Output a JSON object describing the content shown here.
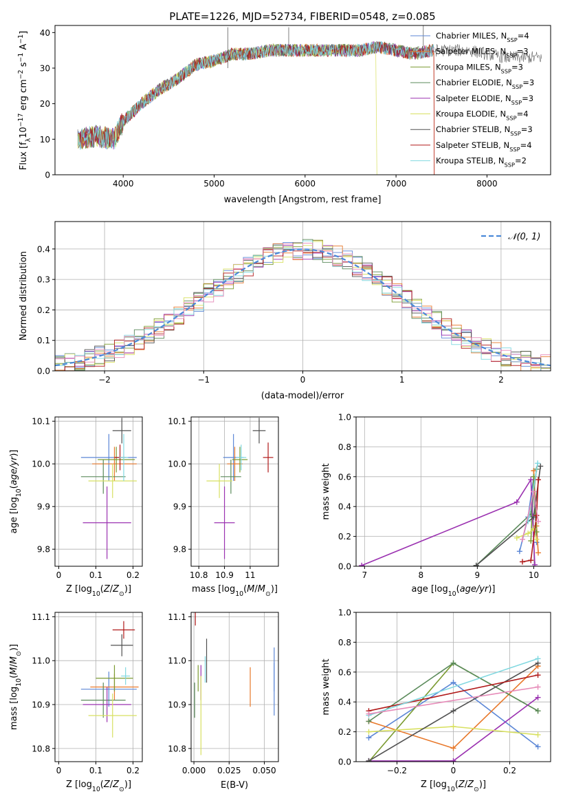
{
  "figure_title": "PLATE=1226, MJD=52734, FIBERID=0548, z=0.085",
  "model_colors": [
    "#5b86d6",
    "#e8782a",
    "#7a9a30",
    "#5a8a5a",
    "#9a30b0",
    "#d8e060",
    "#505050",
    "#b01818",
    "#80d8e0"
  ],
  "chart_data": [
    {
      "type": "line",
      "title": "PLATE=1226, MJD=52734, FIBERID=0548, z=0.085",
      "xlabel": "wavelength [Angstrom, rest frame]",
      "ylabel": "Flux [f_λ 10^-17 erg cm^-2 s^-1 A^-1]",
      "xlim": [
        3250,
        8700
      ],
      "ylim": [
        0,
        42
      ],
      "xticks": [
        4000,
        5000,
        6000,
        7000,
        8000
      ],
      "yticks": [
        0,
        10,
        20,
        30,
        40
      ],
      "legend_position": "top-right",
      "series": [
        {
          "name": "Chabrier MILES, N_SSP=4",
          "label_main": "Chabrier MILES, N",
          "label_sub": "SSP",
          "label_end": "=4",
          "color": "#5b86d6"
        },
        {
          "name": "Salpeter MILES, N_SSP=3",
          "label_main": "Salpeter MILES, N",
          "label_sub": "SSP",
          "label_end": "=3",
          "color": "#e8782a"
        },
        {
          "name": "Kroupa MILES, N_SSP=3",
          "label_main": "Kroupa MILES, N",
          "label_sub": "SSP",
          "label_end": "=3",
          "color": "#7a9a30"
        },
        {
          "name": "Chabrier ELODIE, N_SSP=3",
          "label_main": "Chabrier ELODIE, N",
          "label_sub": "SSP",
          "label_end": "=3",
          "color": "#5a8a5a"
        },
        {
          "name": "Salpeter ELODIE, N_SSP=3",
          "label_main": "Salpeter ELODIE, N",
          "label_sub": "SSP",
          "label_end": "=3",
          "color": "#9a30b0"
        },
        {
          "name": "Kroupa ELODIE, N_SSP=4",
          "label_main": "Kroupa ELODIE, N",
          "label_sub": "SSP",
          "label_end": "=4",
          "color": "#d8e060"
        },
        {
          "name": "Chabrier STELIB, N_SSP=3",
          "label_main": "Chabrier STELIB, N",
          "label_sub": "SSP",
          "label_end": "=3",
          "color": "#505050"
        },
        {
          "name": "Salpeter STELIB, N_SSP=4",
          "label_main": "Salpeter STELIB, N",
          "label_sub": "SSP",
          "label_end": "=4",
          "color": "#b01818"
        },
        {
          "name": "Kroupa STELIB, N_SSP=2",
          "label_main": "Kroupa STELIB, N",
          "label_sub": "SSP",
          "label_end": "=2",
          "color": "#80d8e0"
        }
      ],
      "spectrum_anchors": {
        "x": [
          3500,
          3700,
          3900,
          4000,
          4200,
          4400,
          4600,
          4800,
          5000,
          5200,
          5400,
          5600,
          5800,
          6000,
          6200,
          6400,
          6600,
          6800,
          7000,
          7200,
          7400,
          7600,
          7800,
          8000,
          8200
        ],
        "y": [
          10,
          11,
          10,
          15,
          20,
          24,
          27,
          31,
          32,
          34,
          34,
          35,
          35,
          35,
          35,
          35,
          35,
          36,
          35,
          34,
          35,
          35,
          35,
          34,
          33
        ]
      }
    },
    {
      "type": "bar",
      "subtype": "step-histogram",
      "xlabel": "(data-model)/error",
      "ylabel": "Normed distribution",
      "xlim": [
        -2.5,
        2.5
      ],
      "ylim": [
        0,
        0.49
      ],
      "xticks": [
        -2,
        -1,
        0,
        1,
        2
      ],
      "yticks": [
        0.0,
        0.1,
        0.2,
        0.3,
        0.4
      ],
      "reference_curve": {
        "name": "N(0,1)",
        "label": "𝒩(0, 1)",
        "color": "#4a88d8",
        "style": "dashed",
        "mu": 0,
        "sigma": 1
      },
      "legend_position": "top-right",
      "bin_width": 0.1,
      "bin_start": -2.5
    },
    {
      "type": "scatter",
      "subtype": "errorbar",
      "xlabel": "Z [log10(Z/Z⊙)]",
      "ylabel": "age  [log10(age/yr)]",
      "xlim": [
        -0.01,
        0.225
      ],
      "ylim": [
        9.76,
        10.11
      ],
      "xticks": [
        0.0,
        0.1,
        0.2
      ],
      "yticks": [
        9.8,
        9.9,
        10.0,
        10.1
      ],
      "points": [
        {
          "x": 0.135,
          "y": 10.015,
          "xerr": 0.075,
          "yerr": 0.055
        },
        {
          "x": 0.15,
          "y": 10.0,
          "xerr": 0.06,
          "yerr": 0.04
        },
        {
          "x": 0.155,
          "y": 10.01,
          "xerr": 0.05,
          "yerr": 0.03
        },
        {
          "x": 0.12,
          "y": 9.97,
          "xerr": 0.06,
          "yerr": 0.04
        },
        {
          "x": 0.13,
          "y": 9.862,
          "xerr": 0.065,
          "yerr": 0.085
        },
        {
          "x": 0.145,
          "y": 9.96,
          "xerr": 0.065,
          "yerr": 0.04
        },
        {
          "x": 0.17,
          "y": 10.078,
          "xerr": 0.025,
          "yerr": 0.03
        },
        {
          "x": 0.165,
          "y": 10.015,
          "xerr": 0.015,
          "yerr": 0.03
        },
        {
          "x": 0.175,
          "y": 10.015,
          "xerr": 0.012,
          "yerr": 0.055
        }
      ]
    },
    {
      "type": "scatter",
      "subtype": "errorbar",
      "xlabel": "mass [log10(M/M⊙)]",
      "ylabel": "",
      "xlim": [
        10.77,
        11.11
      ],
      "ylim": [
        9.76,
        10.11
      ],
      "xticks": [
        10.8,
        10.9,
        11.0
      ],
      "yticks": [
        9.8,
        9.9,
        10.0,
        10.1
      ],
      "points": [
        {
          "x": 10.935,
          "y": 10.015,
          "xerr": 0.04,
          "yerr": 0.055
        },
        {
          "x": 10.94,
          "y": 10.0,
          "xerr": 0.03,
          "yerr": 0.04
        },
        {
          "x": 10.96,
          "y": 10.01,
          "xerr": 0.03,
          "yerr": 0.03
        },
        {
          "x": 10.925,
          "y": 9.97,
          "xerr": 0.04,
          "yerr": 0.04
        },
        {
          "x": 10.9,
          "y": 9.862,
          "xerr": 0.04,
          "yerr": 0.085
        },
        {
          "x": 10.88,
          "y": 9.96,
          "xerr": 0.05,
          "yerr": 0.04
        },
        {
          "x": 11.035,
          "y": 10.078,
          "xerr": 0.025,
          "yerr": 0.03
        },
        {
          "x": 11.07,
          "y": 10.015,
          "xerr": 0.02,
          "yerr": 0.035
        },
        {
          "x": 10.965,
          "y": 10.015,
          "xerr": 0.02,
          "yerr": 0.03
        }
      ]
    },
    {
      "type": "line",
      "xlabel": "age  [log10(age/yr)]",
      "ylabel": "mass weight",
      "xlim": [
        6.85,
        10.3
      ],
      "ylim": [
        0,
        1.0
      ],
      "xticks": [
        7,
        8,
        9,
        10
      ],
      "yticks": [
        0.0,
        0.2,
        0.4,
        0.6,
        0.8,
        1.0
      ],
      "series": [
        {
          "x": [
            9.75,
            9.9,
            10.0,
            10.05
          ],
          "y": [
            0.1,
            0.33,
            0.6,
            0.16
          ]
        },
        {
          "x": [
            10.0,
            10.05,
            10.08
          ],
          "y": [
            0.64,
            0.27,
            0.09
          ]
        },
        {
          "x": [
            9.95,
            10.0,
            10.05
          ],
          "y": [
            0.17,
            0.6,
            0.23
          ]
        },
        {
          "x": [
            8.98,
            9.95,
            10.05
          ],
          "y": [
            0.005,
            0.35,
            0.65
          ]
        },
        {
          "x": [
            6.95,
            9.7,
            9.95,
            10.02
          ],
          "y": [
            0.005,
            0.43,
            0.58,
            0.01
          ]
        },
        {
          "x": [
            9.7,
            9.9,
            10.0,
            10.05
          ],
          "y": [
            0.19,
            0.22,
            0.25,
            0.18
          ]
        },
        {
          "x": [
            8.98,
            10.0,
            10.12
          ],
          "y": [
            0.005,
            0.33,
            0.67
          ]
        },
        {
          "x": [
            9.8,
            9.95,
            10.05,
            10.08
          ],
          "y": [
            0.03,
            0.04,
            0.34,
            0.58
          ]
        },
        {
          "x": [
            9.9,
            10.07
          ],
          "y": [
            0.3,
            0.69
          ]
        },
        {
          "x": [
            9.8,
            10.0,
            10.08
          ],
          "y": [
            0.18,
            0.5,
            0.3
          ]
        }
      ]
    },
    {
      "type": "scatter",
      "subtype": "errorbar",
      "xlabel": "Z [log10(Z/Z⊙)]",
      "ylabel": "mass [log10(M/M⊙)]",
      "xlim": [
        -0.01,
        0.225
      ],
      "ylim": [
        10.77,
        11.11
      ],
      "xticks": [
        0.0,
        0.1,
        0.2
      ],
      "yticks": [
        10.8,
        10.9,
        11.0,
        11.1
      ],
      "points": [
        {
          "x": 0.135,
          "y": 10.935,
          "xerr": 0.075,
          "yerr": 0.04
        },
        {
          "x": 0.15,
          "y": 10.94,
          "xerr": 0.065,
          "yerr": 0.03
        },
        {
          "x": 0.15,
          "y": 10.96,
          "xerr": 0.05,
          "yerr": 0.03
        },
        {
          "x": 0.12,
          "y": 10.91,
          "xerr": 0.06,
          "yerr": 0.04
        },
        {
          "x": 0.13,
          "y": 10.9,
          "xerr": 0.065,
          "yerr": 0.04
        },
        {
          "x": 0.145,
          "y": 10.875,
          "xerr": 0.065,
          "yerr": 0.05
        },
        {
          "x": 0.17,
          "y": 11.035,
          "xerr": 0.03,
          "yerr": 0.025
        },
        {
          "x": 0.175,
          "y": 11.07,
          "xerr": 0.03,
          "yerr": 0.02
        },
        {
          "x": 0.18,
          "y": 10.965,
          "xerr": 0.012,
          "yerr": 0.02
        }
      ]
    },
    {
      "type": "scatter",
      "subtype": "errorbar",
      "xlabel": "E(B-V)",
      "ylabel": "",
      "xlim": [
        -0.002,
        0.06
      ],
      "ylim": [
        10.77,
        11.11
      ],
      "xticks": [
        0.0,
        0.025,
        0.05
      ],
      "xticklabels": [
        "0.000",
        "0.025",
        "0.050"
      ],
      "yticks": [
        10.8,
        10.9,
        11.0,
        11.1
      ],
      "points": [
        {
          "x": 0.057,
          "y": 10.935,
          "xerr": 0,
          "yerr": 0.06
        },
        {
          "x": 0.04,
          "y": 10.94,
          "xerr": 0,
          "yerr": 0.045
        },
        {
          "x": 0.003,
          "y": 10.96,
          "xerr": 0,
          "yerr": 0.03
        },
        {
          "x": 0.0005,
          "y": 10.91,
          "xerr": 0,
          "yerr": 0.04
        },
        {
          "x": 0.005,
          "y": 10.95,
          "xerr": 0,
          "yerr": 0.04
        },
        {
          "x": 0.005,
          "y": 10.875,
          "xerr": 0,
          "yerr": 0.09
        },
        {
          "x": 0.009,
          "y": 11.0,
          "xerr": 0,
          "yerr": 0.05
        },
        {
          "x": 0.001,
          "y": 11.1,
          "xerr": 0,
          "yerr": 0.02
        },
        {
          "x": 0.008,
          "y": 10.98,
          "xerr": 0,
          "yerr": 0.03
        },
        {
          "x": 0.057,
          "y": 10.98,
          "xerr": 0,
          "yerr": 0.05
        }
      ]
    },
    {
      "type": "line",
      "xlabel": "Z [log10(Z/Z⊙)]",
      "ylabel": "mass weight",
      "xlim": [
        -0.345,
        0.345
      ],
      "ylim": [
        0,
        1.0
      ],
      "xticks": [
        -0.2,
        0.0,
        0.2
      ],
      "yticks": [
        0.0,
        0.2,
        0.4,
        0.6,
        0.8,
        1.0
      ],
      "series": [
        {
          "x": [
            -0.3,
            0.0,
            0.3
          ],
          "y": [
            0.16,
            0.53,
            0.1
          ]
        },
        {
          "x": [
            -0.3,
            0.0,
            0.3
          ],
          "y": [
            0.27,
            0.09,
            0.64
          ]
        },
        {
          "x": [
            -0.3,
            0.0,
            0.3
          ],
          "y": [
            0.0,
            0.66,
            0.34
          ]
        },
        {
          "x": [
            -0.3,
            0.0,
            0.3
          ],
          "y": [
            0.27,
            0.66,
            0.34
          ]
        },
        {
          "x": [
            -0.3,
            0.0,
            0.3
          ],
          "y": [
            0.005,
            0.005,
            0.43
          ]
        },
        {
          "x": [
            -0.3,
            0.0,
            0.3
          ],
          "y": [
            0.2,
            0.235,
            0.18
          ]
        },
        {
          "x": [
            -0.3,
            0.0,
            0.3
          ],
          "y": [
            0.005,
            0.34,
            0.66
          ]
        },
        {
          "x": [
            -0.3,
            0.3
          ],
          "y": [
            0.34,
            0.58
          ]
        },
        {
          "x": [
            -0.3,
            0.3
          ],
          "y": [
            0.31,
            0.69
          ]
        },
        {
          "x": [
            -0.3,
            0.3
          ],
          "y": [
            0.32,
            0.5
          ]
        }
      ]
    }
  ]
}
